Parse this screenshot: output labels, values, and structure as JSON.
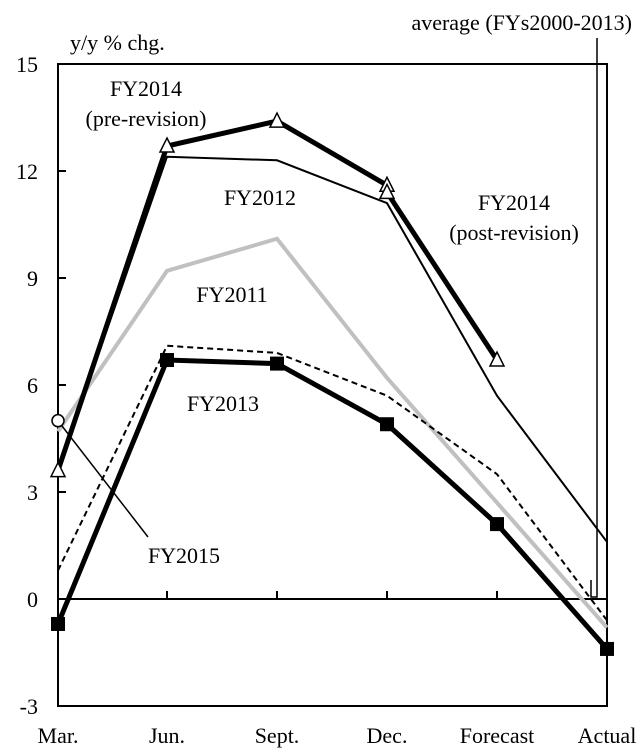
{
  "chart_data": {
    "type": "line",
    "ylabel": "y/y % chg.",
    "categories": [
      "Mar.",
      "Jun.",
      "Sept.",
      "Dec.",
      "Forecast",
      "Actual"
    ],
    "ylim": [
      -3,
      15
    ],
    "yticks": [
      -3,
      0,
      3,
      6,
      9,
      12,
      15
    ],
    "grid": false,
    "series": [
      {
        "name": "FY2011",
        "values": [
          4.7,
          9.2,
          10.1,
          6.2,
          2.7,
          -0.8
        ],
        "color": "#c0c0c0",
        "style": "solid",
        "width": 4,
        "marker": "none"
      },
      {
        "name": "FY2012",
        "values": [
          3.6,
          12.4,
          12.3,
          11.1,
          5.7,
          1.6
        ],
        "color": "#000000",
        "style": "solid",
        "width": 2,
        "marker": "none"
      },
      {
        "name": "FY2013",
        "values": [
          -0.7,
          6.7,
          6.6,
          4.9,
          2.1,
          -1.4
        ],
        "color": "#000000",
        "style": "solid",
        "width": 5,
        "marker": "square"
      },
      {
        "name": "FY2014 (pre-revision)",
        "values": [
          3.6,
          12.7,
          13.4,
          11.6,
          null,
          null
        ],
        "color": "#000000",
        "style": "solid",
        "width": 5,
        "marker": "triangle"
      },
      {
        "name": "FY2014 (post-revision)",
        "values": [
          null,
          null,
          null,
          11.4,
          6.7,
          null
        ],
        "color": "#000000",
        "style": "solid",
        "width": 5,
        "marker": "triangle"
      },
      {
        "name": "average (FYs2000-2013)",
        "values": [
          0.8,
          7.1,
          6.9,
          5.7,
          3.5,
          -0.6
        ],
        "color": "#000000",
        "style": "dashed",
        "width": 2,
        "marker": "none"
      },
      {
        "name": "FY2015",
        "values": [
          5.0,
          null,
          null,
          null,
          null,
          null
        ],
        "color": "#000000",
        "style": "solid",
        "width": 2,
        "marker": "circle"
      }
    ],
    "annotations": [
      {
        "lines": [
          "average (FYs2000-2013)"
        ]
      },
      {
        "lines": [
          "FY2014",
          "(pre-revision)"
        ]
      },
      {
        "lines": [
          "FY2012"
        ]
      },
      {
        "lines": [
          "FY2014",
          "(post-revision)"
        ]
      },
      {
        "lines": [
          "FY2011"
        ]
      },
      {
        "lines": [
          "FY2013"
        ]
      },
      {
        "lines": [
          "FY2015"
        ]
      }
    ]
  }
}
